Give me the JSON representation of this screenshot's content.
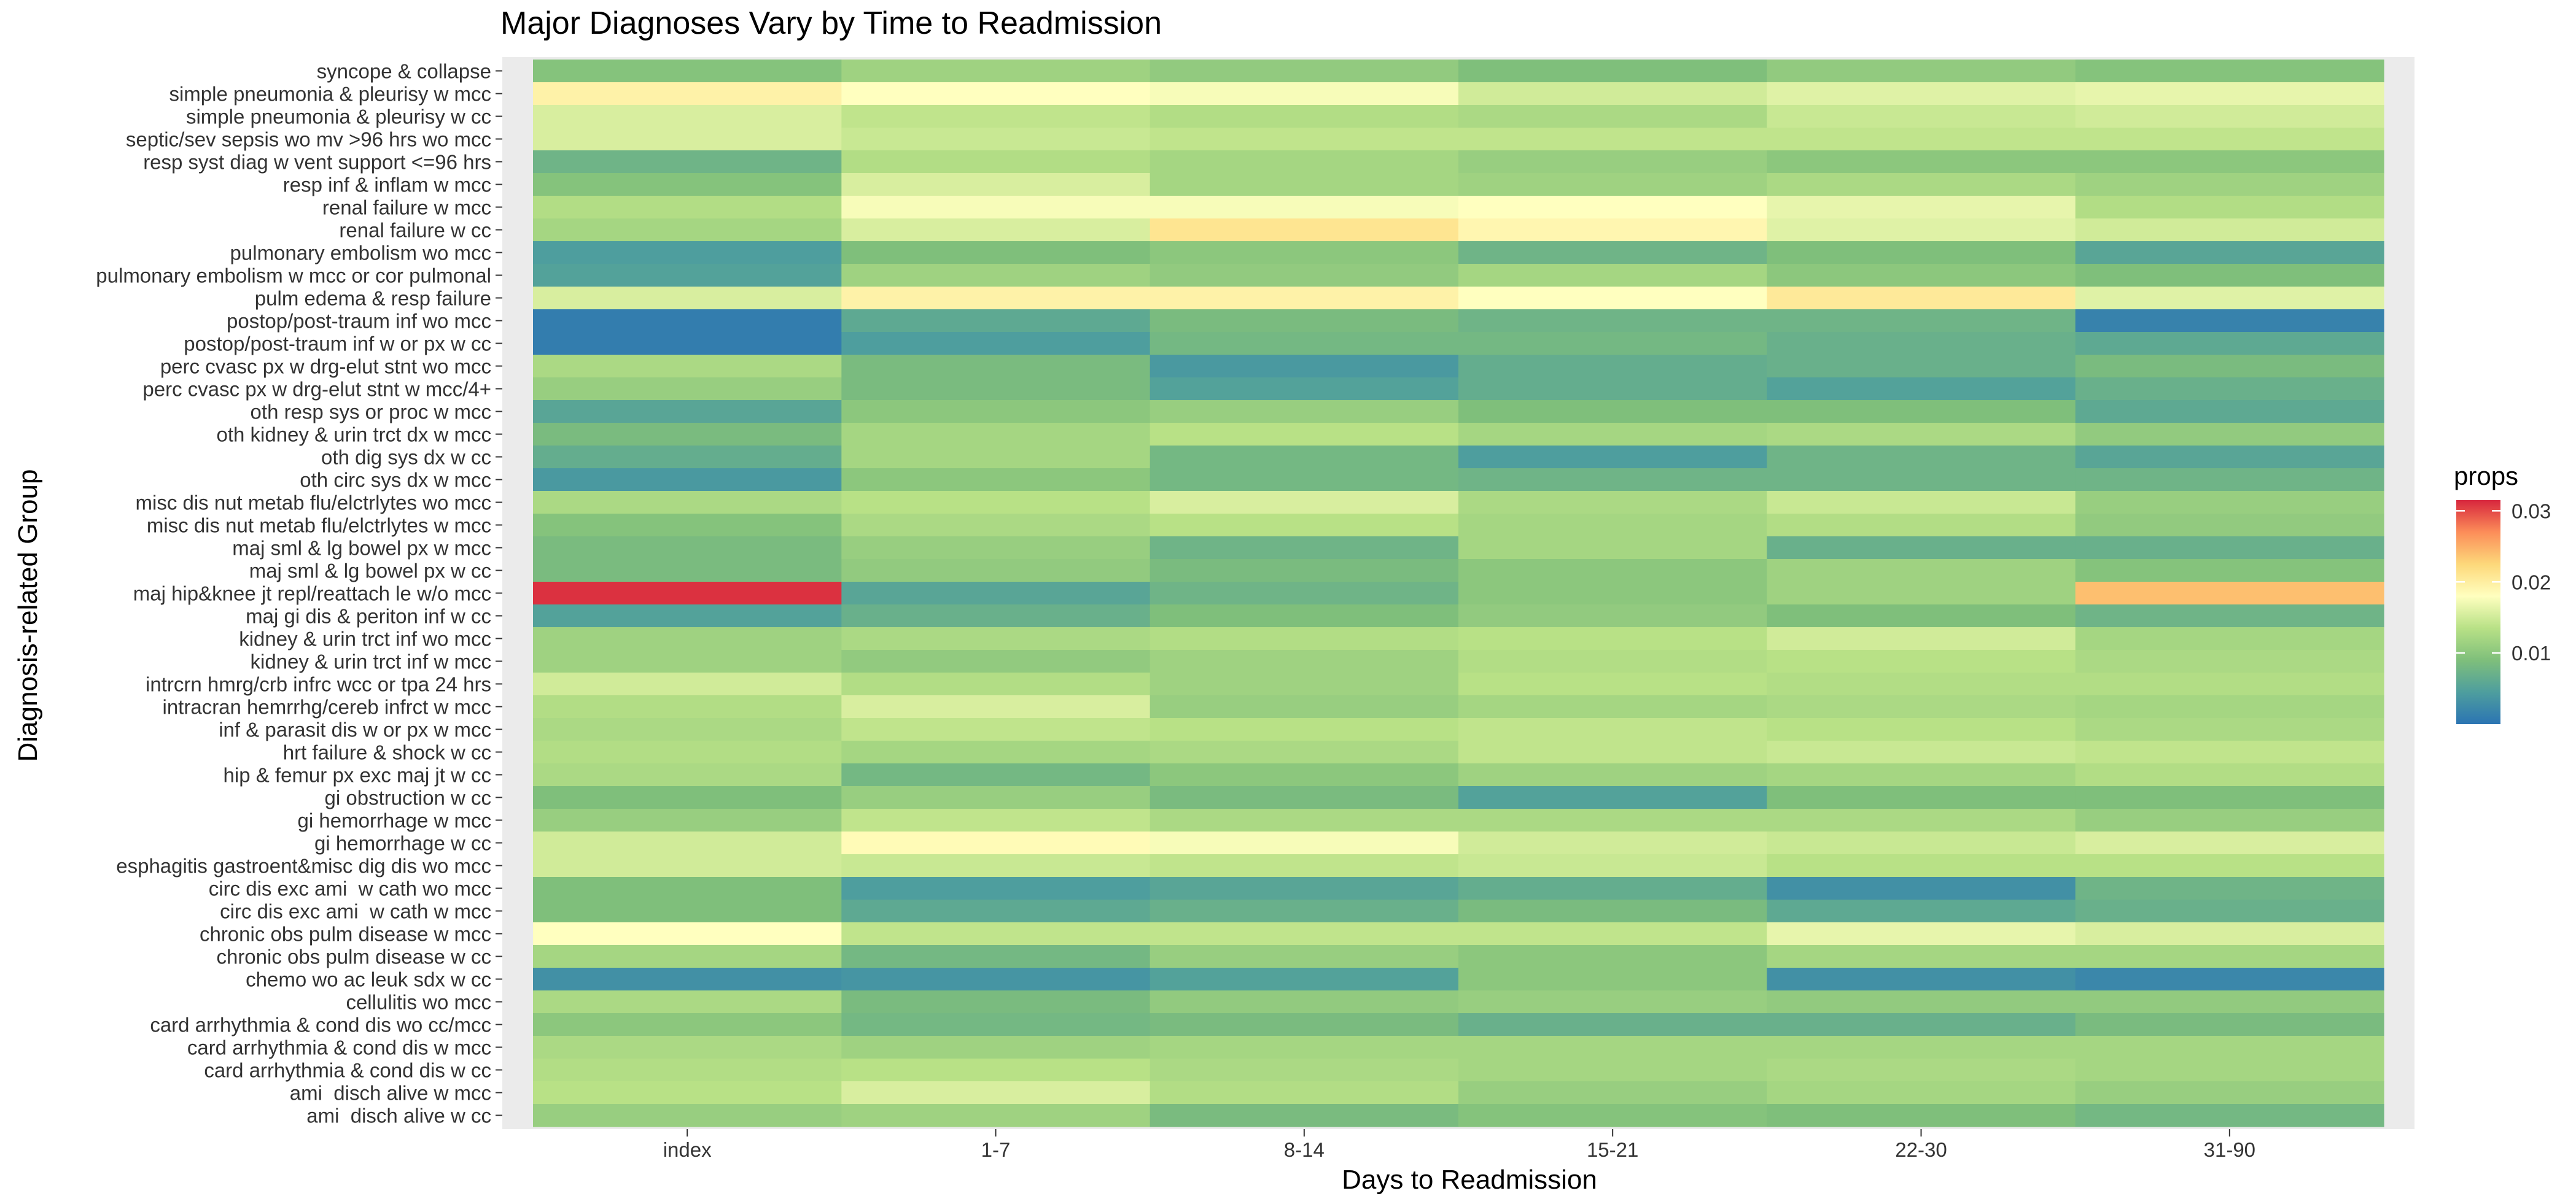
{
  "chart_data": {
    "type": "heatmap",
    "title": "Major Diagnoses Vary by Time to Readmission",
    "xlabel": "Days to Readmission",
    "ylabel": "Diagnosis-related Group",
    "legend": {
      "title": "props",
      "position": "right",
      "ticks": [
        "0.03",
        "0.02",
        "0.01"
      ],
      "range": [
        0.0,
        0.0315
      ],
      "colors": [
        "#2b74b3",
        "#4e9e9e",
        "#7fbf7b",
        "#b8e186",
        "#ffffbf",
        "#fdd87a",
        "#fc8d59",
        "#d7263d"
      ]
    },
    "x": [
      "index",
      "1-7",
      "8-14",
      "15-21",
      "22-30",
      "31-90"
    ],
    "y": [
      "syncope & collapse",
      "simple pneumonia & pleurisy w mcc",
      "simple pneumonia & pleurisy w cc",
      "septic/sev sepsis wo mv >96 hrs wo mcc",
      "resp syst diag w vent support <=96 hrs",
      "resp inf & inflam w mcc",
      "renal failure w mcc",
      "renal failure w cc",
      "pulmonary embolism wo mcc",
      "pulmonary embolism w mcc or cor pulmonal",
      "pulm edema & resp failure",
      "postop/post-traum inf wo mcc",
      "postop/post-traum inf w or px w cc",
      "perc cvasc px w drg-elut stnt wo mcc",
      "perc cvasc px w drg-elut stnt w mcc/4+",
      "oth resp sys or proc w mcc",
      "oth kidney & urin trct dx w mcc",
      "oth dig sys dx w cc",
      "oth circ sys dx w mcc",
      "misc dis nut metab flu/elctrlytes wo mcc",
      "misc dis nut metab flu/elctrlytes w mcc",
      "maj sml & lg bowel px w mcc",
      "maj sml & lg bowel px w cc",
      "maj hip&knee jt repl/reattach le w/o mcc",
      "maj gi dis & periton inf w cc",
      "kidney & urin trct inf wo mcc",
      "kidney & urin trct inf w mcc",
      "intrcrn hmrg/crb infrc wcc or tpa 24 hrs",
      "intracran hemrrhg/cereb infrct w mcc",
      "inf & parasit dis w or px w mcc",
      "hrt failure & shock w cc",
      "hip & femur px exc maj jt w cc",
      "gi obstruction w cc",
      "gi hemorrhage w mcc",
      "gi hemorrhage w cc",
      "esphagitis gastroent&misc dig dis wo mcc",
      "circ dis exc ami  w cath wo mcc",
      "circ dis exc ami  w cath w mcc",
      "chronic obs pulm disease w mcc",
      "chronic obs pulm disease w cc",
      "chemo wo ac leuk sdx w cc",
      "cellulitis wo mcc",
      "card arrhythmia & cond dis wo cc/mcc",
      "card arrhythmia & cond dis w mcc",
      "card arrhythmia & cond dis w cc",
      "ami  disch alive w mcc",
      "ami  disch alive w cc"
    ],
    "values": [
      [
        0.0095,
        0.0115,
        0.0105,
        0.009,
        0.0105,
        0.0095
      ],
      [
        0.0195,
        0.018,
        0.0175,
        0.015,
        0.016,
        0.0165
      ],
      [
        0.0155,
        0.014,
        0.013,
        0.0125,
        0.0145,
        0.015
      ],
      [
        0.0155,
        0.0145,
        0.014,
        0.014,
        0.014,
        0.014
      ],
      [
        0.0075,
        0.013,
        0.012,
        0.011,
        0.01,
        0.01
      ],
      [
        0.0095,
        0.0155,
        0.012,
        0.0115,
        0.0125,
        0.0115
      ],
      [
        0.013,
        0.0175,
        0.0175,
        0.018,
        0.0165,
        0.013
      ],
      [
        0.012,
        0.0155,
        0.021,
        0.019,
        0.016,
        0.015
      ],
      [
        0.0045,
        0.009,
        0.01,
        0.0075,
        0.009,
        0.0055
      ],
      [
        0.005,
        0.0115,
        0.0105,
        0.012,
        0.01,
        0.009
      ],
      [
        0.0155,
        0.0195,
        0.0195,
        0.018,
        0.0205,
        0.016
      ],
      [
        0.001,
        0.006,
        0.0085,
        0.0075,
        0.0075,
        0.0015
      ],
      [
        0.001,
        0.0045,
        0.008,
        0.008,
        0.007,
        0.006
      ],
      [
        0.0125,
        0.0085,
        0.004,
        0.0065,
        0.007,
        0.0085
      ],
      [
        0.011,
        0.0085,
        0.005,
        0.0065,
        0.005,
        0.007
      ],
      [
        0.0055,
        0.01,
        0.011,
        0.009,
        0.009,
        0.006
      ],
      [
        0.0085,
        0.012,
        0.0135,
        0.012,
        0.0125,
        0.0105
      ],
      [
        0.0065,
        0.012,
        0.008,
        0.0045,
        0.0075,
        0.0055
      ],
      [
        0.004,
        0.01,
        0.008,
        0.0075,
        0.0075,
        0.0075
      ],
      [
        0.0125,
        0.0135,
        0.0155,
        0.0125,
        0.0145,
        0.011
      ],
      [
        0.0095,
        0.0125,
        0.0135,
        0.012,
        0.013,
        0.0105
      ],
      [
        0.0085,
        0.011,
        0.0075,
        0.012,
        0.007,
        0.007
      ],
      [
        0.0085,
        0.0105,
        0.0085,
        0.01,
        0.0115,
        0.0095
      ],
      [
        0.031,
        0.0055,
        0.0075,
        0.01,
        0.0115,
        0.024
      ],
      [
        0.005,
        0.007,
        0.009,
        0.0105,
        0.009,
        0.0075
      ],
      [
        0.0115,
        0.0125,
        0.013,
        0.0135,
        0.015,
        0.012
      ],
      [
        0.0115,
        0.0105,
        0.0115,
        0.013,
        0.0135,
        0.0125
      ],
      [
        0.015,
        0.013,
        0.0115,
        0.0135,
        0.013,
        0.013
      ],
      [
        0.013,
        0.0155,
        0.011,
        0.012,
        0.0125,
        0.012
      ],
      [
        0.0125,
        0.014,
        0.0135,
        0.014,
        0.0135,
        0.0125
      ],
      [
        0.013,
        0.012,
        0.0125,
        0.014,
        0.0145,
        0.014
      ],
      [
        0.0125,
        0.008,
        0.01,
        0.0115,
        0.012,
        0.013
      ],
      [
        0.009,
        0.011,
        0.0085,
        0.005,
        0.009,
        0.009
      ],
      [
        0.011,
        0.014,
        0.0125,
        0.0125,
        0.0125,
        0.011
      ],
      [
        0.015,
        0.0185,
        0.0175,
        0.015,
        0.0145,
        0.0155
      ],
      [
        0.015,
        0.0145,
        0.014,
        0.0145,
        0.0135,
        0.0135
      ],
      [
        0.009,
        0.0045,
        0.0055,
        0.0065,
        0.003,
        0.0075
      ],
      [
        0.009,
        0.006,
        0.007,
        0.0085,
        0.006,
        0.007
      ],
      [
        0.018,
        0.014,
        0.014,
        0.014,
        0.0165,
        0.0155
      ],
      [
        0.012,
        0.008,
        0.011,
        0.01,
        0.012,
        0.012
      ],
      [
        0.003,
        0.0035,
        0.005,
        0.01,
        0.003,
        0.002
      ],
      [
        0.0125,
        0.0085,
        0.0105,
        0.011,
        0.0105,
        0.0105
      ],
      [
        0.01,
        0.008,
        0.0085,
        0.007,
        0.007,
        0.0085
      ],
      [
        0.0125,
        0.0115,
        0.012,
        0.012,
        0.012,
        0.012
      ],
      [
        0.013,
        0.0135,
        0.0125,
        0.012,
        0.0125,
        0.012
      ],
      [
        0.0135,
        0.0155,
        0.013,
        0.011,
        0.012,
        0.011
      ],
      [
        0.011,
        0.0115,
        0.0085,
        0.0095,
        0.009,
        0.008
      ]
    ]
  }
}
